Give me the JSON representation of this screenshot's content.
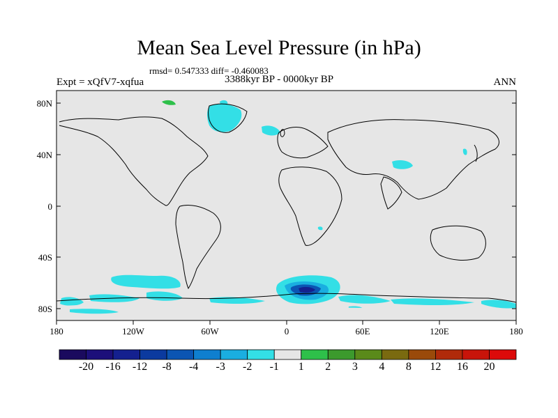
{
  "header": {
    "title": "Mean Sea Level Pressure (in hPa)",
    "stats": "rmsd= 0.547333 diff= -0.460083",
    "period": "3388kyr BP - 0000kyr BP",
    "experiment": "Expt = xQfV7-xqfua",
    "season": "ANN"
  },
  "axes": {
    "lat_labels": [
      "80N",
      "40N",
      "0",
      "40S",
      "80S"
    ],
    "lon_labels": [
      "180",
      "120W",
      "60W",
      "0",
      "60E",
      "120E",
      "180"
    ]
  },
  "colorbar": {
    "labels": [
      "-20",
      "-16",
      "-12",
      "-8",
      "-4",
      "-3",
      "-2",
      "-1",
      "1",
      "2",
      "3",
      "4",
      "8",
      "12",
      "16",
      "20"
    ],
    "colors": [
      "#1a0a5e",
      "#1c0f7a",
      "#14208f",
      "#0b3a9f",
      "#0b55b3",
      "#0f7fcf",
      "#1aaee0",
      "#33dfe6",
      "#e6e6e6",
      "#2ec04a",
      "#3c9a2d",
      "#5a8a1a",
      "#7a6a10",
      "#9a4a0a",
      "#b02a0a",
      "#c8140a",
      "#dc0a0a"
    ]
  },
  "map_colors": {
    "background": "#e6e6e6",
    "coast": "#000000",
    "anomaly_light": "#33dfe6",
    "anomaly_mid": "#1aaee0",
    "anomaly_strong": "#0b55b3",
    "anomaly_core": "#14208f",
    "anomaly_positive": "#2ec04a"
  }
}
